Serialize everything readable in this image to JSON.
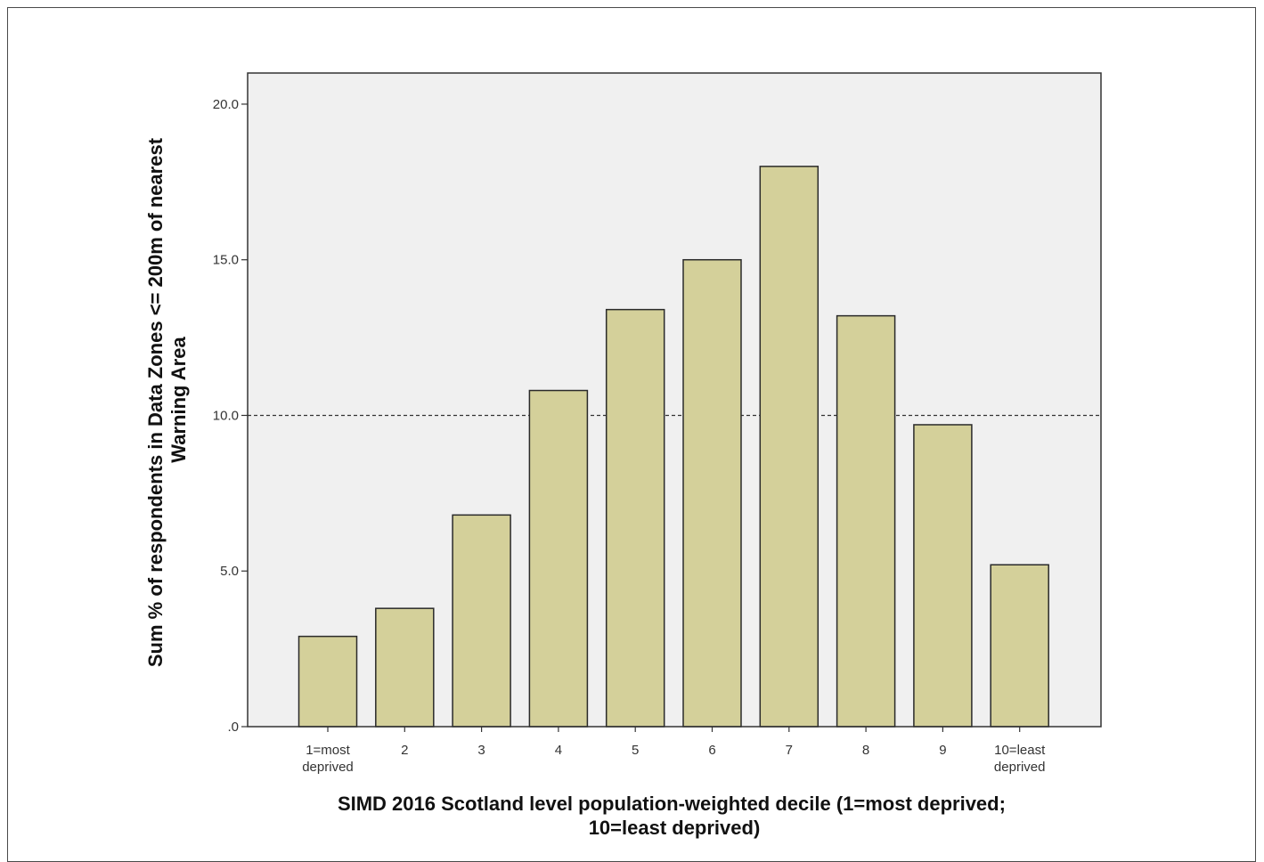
{
  "chart_data": {
    "type": "bar",
    "categories": [
      [
        "1=most",
        "deprived"
      ],
      [
        "2"
      ],
      [
        "3"
      ],
      [
        "4"
      ],
      [
        "5"
      ],
      [
        "6"
      ],
      [
        "7"
      ],
      [
        "8"
      ],
      [
        "9"
      ],
      [
        "10=least",
        "deprived"
      ]
    ],
    "values": [
      2.9,
      3.8,
      6.8,
      10.8,
      13.4,
      15.0,
      18.0,
      13.2,
      9.7,
      5.2
    ],
    "title": "",
    "xlabel": [
      "SIMD 2016 Scotland level population-weighted decile (1=most deprived;",
      "10=least deprived)"
    ],
    "ylabel": [
      "Sum % of respondents in Data Zones <= 200m of nearest",
      "Warning Area"
    ],
    "ylim": [
      0,
      21
    ],
    "yticks": [
      0,
      5,
      10,
      15,
      20
    ],
    "ytick_labels": [
      ".0",
      "5.0",
      "10.0",
      "15.0",
      "20.0"
    ],
    "reference_line": 10,
    "grid": false,
    "legend": "none",
    "colors": {
      "bar_fill": "#d4d09a",
      "bar_stroke": "#2a2a2a",
      "plot_background": "#f0f0f0",
      "axis": "#333333",
      "reference_line": "#333333"
    }
  }
}
